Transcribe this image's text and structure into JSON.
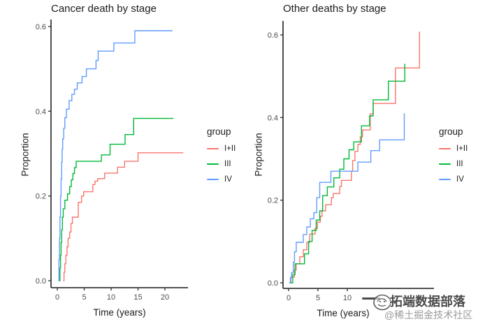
{
  "page": {
    "background": "#ffffff"
  },
  "style": {
    "axis_color": "#3a3a3a",
    "tick_label_color": "#4d4d4d",
    "text_color": "#1c1c1c",
    "series_red": "#F8766D",
    "series_green": "#00BA38",
    "series_blue": "#619CFF"
  },
  "watermark": {
    "logo_icon": "scribble-circle-logo",
    "line1": "拓端数据部落",
    "line2": "@稀土掘金技术社区"
  },
  "chart_data": [
    {
      "type": "line",
      "subtype": "step",
      "title": "Cancer death by stage",
      "xlabel": "Time (years)",
      "ylabel": "Proportion",
      "legend_title": "group",
      "legend_position": "right",
      "grid": false,
      "xlim": [
        -1.2,
        24.3
      ],
      "ylim": [
        -0.017,
        0.617
      ],
      "xtick_labels": [
        "0",
        "5",
        "10",
        "15",
        "20"
      ],
      "xtick_values": [
        0,
        5,
        10,
        15,
        20
      ],
      "ytick_labels": [
        "0.0",
        "0.2",
        "0.4",
        "0.6"
      ],
      "ytick_values": [
        0.0,
        0.2,
        0.4,
        0.6
      ],
      "series": [
        {
          "name": "I+II",
          "color": "#F8766D",
          "points": [
            [
              1.1,
              0
            ],
            [
              1.25,
              0.02
            ],
            [
              1.4,
              0.04
            ],
            [
              1.6,
              0.06
            ],
            [
              1.8,
              0.08
            ],
            [
              2.0,
              0.1
            ],
            [
              2.3,
              0.115
            ],
            [
              2.55,
              0.135
            ],
            [
              2.8,
              0.15
            ],
            [
              3.9,
              0.185
            ],
            [
              4.5,
              0.2
            ],
            [
              4.9,
              0.21
            ],
            [
              6.6,
              0.227
            ],
            [
              7.0,
              0.235
            ],
            [
              7.5,
              0.241
            ],
            [
              8.8,
              0.254
            ],
            [
              11.2,
              0.268
            ],
            [
              12.5,
              0.282
            ],
            [
              15.0,
              0.302
            ],
            [
              23.4,
              0.302
            ]
          ]
        },
        {
          "name": "III",
          "color": "#00BA38",
          "points": [
            [
              0.35,
              0
            ],
            [
              0.5,
              0.03
            ],
            [
              0.6,
              0.06
            ],
            [
              0.7,
              0.09
            ],
            [
              0.8,
              0.12
            ],
            [
              0.95,
              0.15
            ],
            [
              1.1,
              0.17
            ],
            [
              1.4,
              0.19
            ],
            [
              1.9,
              0.205
            ],
            [
              2.3,
              0.222
            ],
            [
              2.6,
              0.238
            ],
            [
              2.9,
              0.253
            ],
            [
              3.2,
              0.267
            ],
            [
              3.5,
              0.282
            ],
            [
              8.2,
              0.297
            ],
            [
              9.8,
              0.322
            ],
            [
              12.6,
              0.345
            ],
            [
              14.2,
              0.383
            ],
            [
              21.6,
              0.383
            ]
          ]
        },
        {
          "name": "IV",
          "color": "#619CFF",
          "points": [
            [
              0.2,
              0
            ],
            [
              0.3,
              0.05
            ],
            [
              0.4,
              0.1
            ],
            [
              0.5,
              0.15
            ],
            [
              0.6,
              0.2
            ],
            [
              0.7,
              0.24
            ],
            [
              0.8,
              0.28
            ],
            [
              0.9,
              0.31
            ],
            [
              1.0,
              0.335
            ],
            [
              1.2,
              0.36
            ],
            [
              1.4,
              0.385
            ],
            [
              1.7,
              0.405
            ],
            [
              2.2,
              0.425
            ],
            [
              2.7,
              0.44
            ],
            [
              3.2,
              0.452
            ],
            [
              3.7,
              0.467
            ],
            [
              4.6,
              0.482
            ],
            [
              5.4,
              0.5
            ],
            [
              7.2,
              0.52
            ],
            [
              7.6,
              0.542
            ],
            [
              10.5,
              0.561
            ],
            [
              14.4,
              0.59
            ],
            [
              21.4,
              0.59
            ]
          ]
        }
      ]
    },
    {
      "type": "line",
      "subtype": "step",
      "title": "Other deaths by stage",
      "xlabel": "Time (years)",
      "ylabel": "Proportion",
      "legend_title": "group",
      "legend_position": "right",
      "grid": false,
      "xlim": [
        -1.0,
        24.8
      ],
      "ylim": [
        -0.014,
        0.634
      ],
      "xtick_labels": [
        "0",
        "5",
        "10"
      ],
      "xtick_values": [
        0,
        5,
        10
      ],
      "ytick_labels": [
        "0.0",
        "0.2",
        "0.4",
        "0.6"
      ],
      "ytick_values": [
        0.0,
        0.2,
        0.4,
        0.6
      ],
      "series": [
        {
          "name": "I+II",
          "color": "#F8766D",
          "points": [
            [
              0.2,
              0
            ],
            [
              0.4,
              0.014
            ],
            [
              1.0,
              0.031
            ],
            [
              1.3,
              0.046
            ],
            [
              1.9,
              0.063
            ],
            [
              2.5,
              0.08
            ],
            [
              3.1,
              0.098
            ],
            [
              3.6,
              0.118
            ],
            [
              4.5,
              0.132
            ],
            [
              4.9,
              0.147
            ],
            [
              5.4,
              0.161
            ],
            [
              5.7,
              0.174
            ],
            [
              6.3,
              0.189
            ],
            [
              7.3,
              0.206
            ],
            [
              7.6,
              0.216
            ],
            [
              8.7,
              0.233
            ],
            [
              9.0,
              0.248
            ],
            [
              10.7,
              0.27
            ],
            [
              10.9,
              0.296
            ],
            [
              11.3,
              0.318
            ],
            [
              11.8,
              0.335
            ],
            [
              12.2,
              0.353
            ],
            [
              12.6,
              0.37
            ],
            [
              13.9,
              0.409
            ],
            [
              14.4,
              0.434
            ],
            [
              18.2,
              0.52
            ],
            [
              22.3,
              0.608
            ]
          ]
        },
        {
          "name": "III",
          "color": "#00BA38",
          "points": [
            [
              0.3,
              0
            ],
            [
              0.7,
              0.02
            ],
            [
              1.1,
              0.046
            ],
            [
              2.7,
              0.07
            ],
            [
              3.4,
              0.1
            ],
            [
              4.0,
              0.127
            ],
            [
              4.7,
              0.152
            ],
            [
              5.3,
              0.174
            ],
            [
              5.8,
              0.211
            ],
            [
              6.6,
              0.232
            ],
            [
              7.7,
              0.254
            ],
            [
              8.7,
              0.275
            ],
            [
              9.4,
              0.3
            ],
            [
              10.3,
              0.322
            ],
            [
              11.1,
              0.341
            ],
            [
              12.4,
              0.38
            ],
            [
              13.8,
              0.404
            ],
            [
              14.4,
              0.443
            ],
            [
              17.0,
              0.488
            ],
            [
              19.8,
              0.53
            ]
          ]
        },
        {
          "name": "IV",
          "color": "#619CFF",
          "points": [
            [
              0.1,
              0
            ],
            [
              0.3,
              0.012
            ],
            [
              0.5,
              0.025
            ],
            [
              0.8,
              0.05
            ],
            [
              1.0,
              0.075
            ],
            [
              1.3,
              0.098
            ],
            [
              2.5,
              0.117
            ],
            [
              3.1,
              0.135
            ],
            [
              3.7,
              0.155
            ],
            [
              4.3,
              0.17
            ],
            [
              4.8,
              0.206
            ],
            [
              5.3,
              0.243
            ],
            [
              7.2,
              0.27
            ],
            [
              11.8,
              0.292
            ],
            [
              14.0,
              0.32
            ],
            [
              15.5,
              0.346
            ],
            [
              19.7,
              0.41
            ]
          ]
        }
      ]
    }
  ]
}
